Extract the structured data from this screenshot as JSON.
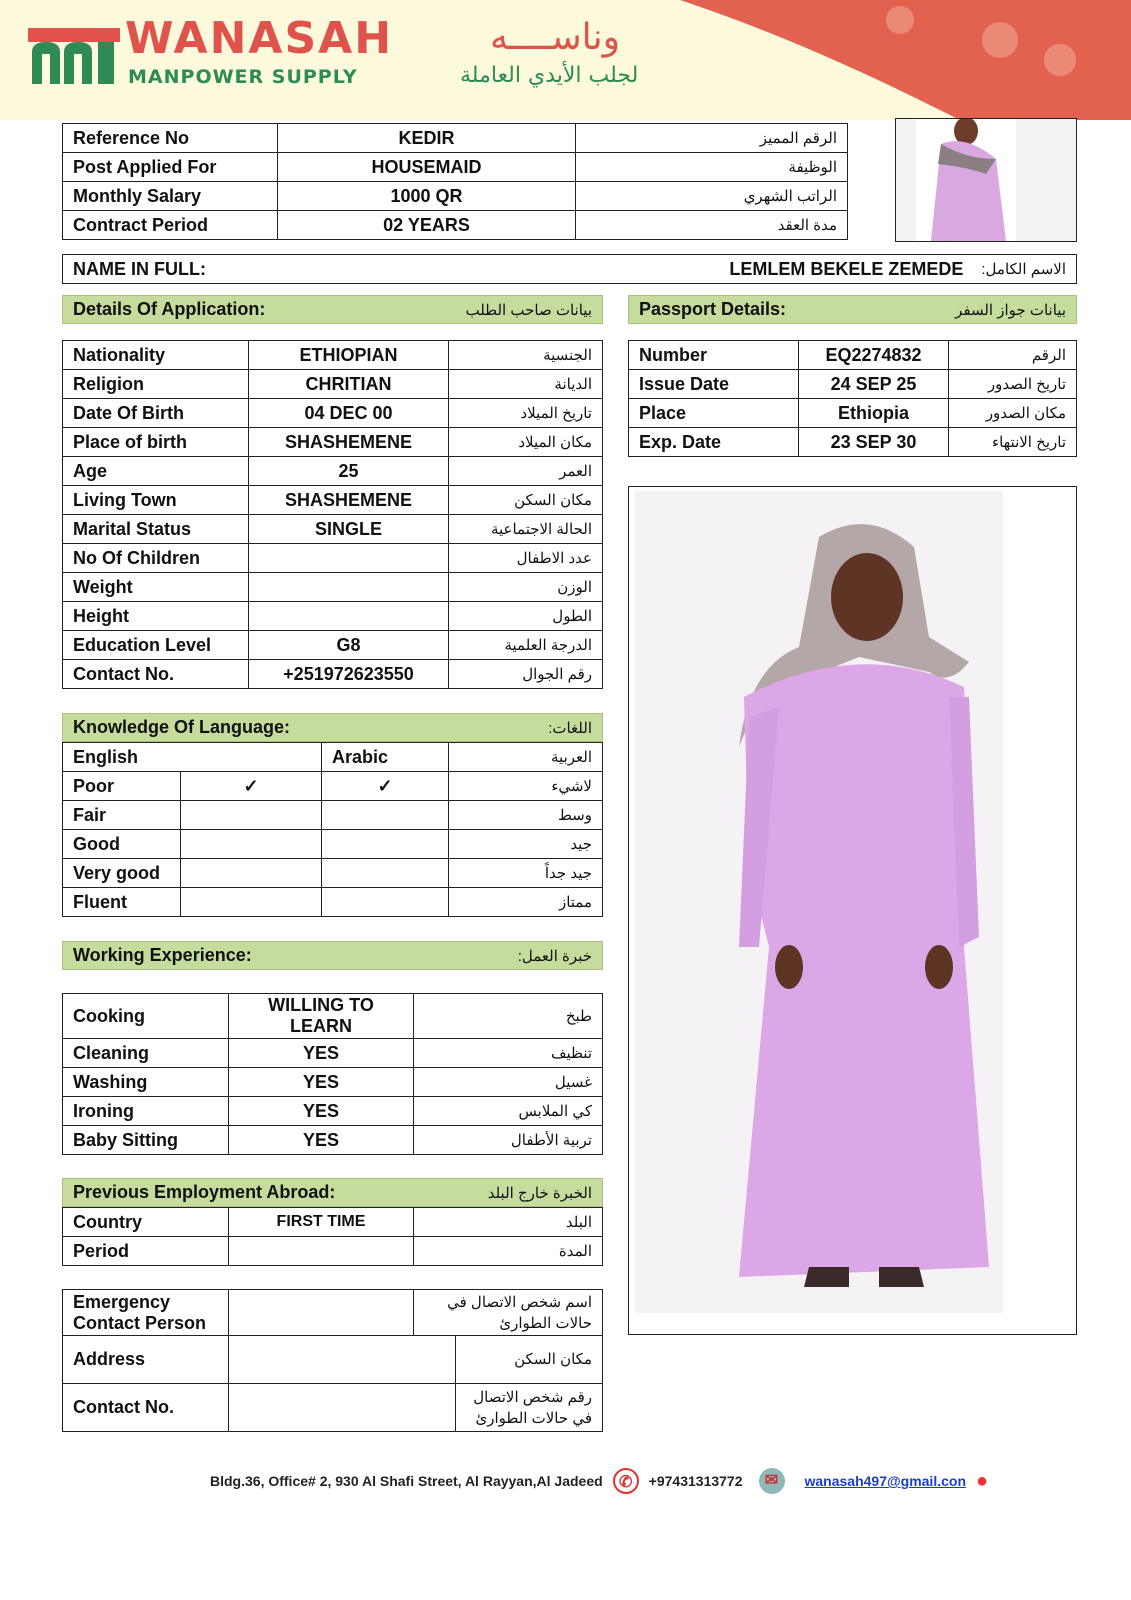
{
  "header": {
    "brand": "WANASAH",
    "brand_ar": "وناســــه",
    "tagline": "MANPOWER SUPPLY",
    "tagline_ar": "لجلب الأيدي العاملة",
    "colors": {
      "red": "#e0534a",
      "green": "#2d8b53",
      "cream": "#fcf9dd"
    }
  },
  "top_table": [
    {
      "label": "Reference No",
      "value": "KEDIR",
      "ar": "الرقم المميز"
    },
    {
      "label": "Post Applied For",
      "value": "HOUSEMAID",
      "ar": "الوظيفة"
    },
    {
      "label": "Monthly Salary",
      "value": "1000 QR",
      "ar": "الراتب الشهري"
    },
    {
      "label": "Contract Period",
      "value": "02 YEARS",
      "ar": "مدة العقد"
    }
  ],
  "name": {
    "label": "NAME IN FULL:",
    "value": "LEMLEM BEKELE ZEMEDE",
    "ar": "الاسم الكامل:"
  },
  "details": {
    "title": "Details Of Application:",
    "title_ar": "بيانات صاحب الطلب",
    "rows": [
      {
        "label": "Nationality",
        "value": "ETHIOPIAN",
        "ar": "الجنسية"
      },
      {
        "label": "Religion",
        "value": "CHRITIAN",
        "ar": "الديانة"
      },
      {
        "label": "Date Of Birth",
        "value": "04 DEC 00",
        "ar": "تاريخ الميلاد"
      },
      {
        "label": "Place of birth",
        "value": "SHASHEMENE",
        "ar": "مكان الميلاد"
      },
      {
        "label": "Age",
        "value": "25",
        "ar": "العمر"
      },
      {
        "label": "Living Town",
        "value": "SHASHEMENE",
        "ar": "مكان السكن"
      },
      {
        "label": "Marital Status",
        "value": "SINGLE",
        "ar": "الحالة الاجتماعية"
      },
      {
        "label": "No Of Children",
        "value": "",
        "ar": "عدد الاطفال"
      },
      {
        "label": "Weight",
        "value": "",
        "ar": "الوزن"
      },
      {
        "label": "Height",
        "value": "",
        "ar": "الطول"
      },
      {
        "label": "Education Level",
        "value": "G8",
        "ar": "الدرجة العلمية"
      },
      {
        "label": "Contact No.",
        "value": "+251972623550",
        "ar": "رقم الجوال"
      }
    ]
  },
  "passport": {
    "title": "Passport Details:",
    "title_ar": "بيانات جواز السفر",
    "rows": [
      {
        "label": "Number",
        "value": "EQ2274832",
        "ar": "الرقم"
      },
      {
        "label": "Issue Date",
        "value": "24 SEP 25",
        "ar": "تاريخ الصدور"
      },
      {
        "label": "Place",
        "value": "Ethiopia",
        "ar": "مكان الصدور"
      },
      {
        "label": "Exp. Date",
        "value": "23 SEP 30",
        "ar": "تاريخ الانتهاء"
      }
    ]
  },
  "language": {
    "title": "Knowledge Of Language:",
    "title_ar": "اللغات:",
    "headers": [
      "English",
      "Arabic",
      "العربية"
    ],
    "rows": [
      {
        "label": "Poor",
        "english": "✓",
        "arabic": "✓",
        "ar": "لاشيء"
      },
      {
        "label": "Fair",
        "english": "",
        "arabic": "",
        "ar": "وسط"
      },
      {
        "label": "Good",
        "english": "",
        "arabic": "",
        "ar": "جيد"
      },
      {
        "label": "Very good",
        "english": "",
        "arabic": "",
        "ar": "جيد جداً"
      },
      {
        "label": "Fluent",
        "english": "",
        "arabic": "",
        "ar": "ممتاز"
      }
    ]
  },
  "experience": {
    "title": "Working Experience:",
    "title_ar": "خبرة العمل:",
    "rows": [
      {
        "label": "Cooking",
        "value": "WILLING TO LEARN",
        "ar": "طبخ"
      },
      {
        "label": "Cleaning",
        "value": "YES",
        "ar": "تنظيف"
      },
      {
        "label": "Washing",
        "value": "YES",
        "ar": "غسيل"
      },
      {
        "label": "Ironing",
        "value": "YES",
        "ar": "كي الملابس"
      },
      {
        "label": "Baby Sitting",
        "value": "YES",
        "ar": "تربية الأطفال"
      }
    ]
  },
  "previous": {
    "title": "Previous Employment Abroad:",
    "title_ar": "الخبرة خارج البلد",
    "rows": [
      {
        "label": "Country",
        "value": "FIRST TIME",
        "ar": "البلد"
      },
      {
        "label": "Period",
        "value": "",
        "ar": "المدة"
      }
    ]
  },
  "emergency": {
    "rows": [
      {
        "label": "Emergency Contact Person",
        "value": "",
        "ar": "اسم شخص الاتصال في حالات الطوارئ"
      },
      {
        "label": "Address",
        "value": "",
        "ar": "مكان السكن"
      },
      {
        "label": "Contact No.",
        "value": "",
        "ar": "رقم شخص الاتصال في حالات الطوارئ"
      }
    ]
  },
  "footer": {
    "address": "Bldg.36, Office# 2, 930 Al Shafi Street, Al Rayyan,Al Jadeed",
    "phone": "+97431313772",
    "email": "wanasah497@gmail.con",
    "icons": [
      "phone-icon",
      "mail-icon",
      "location-pin-icon"
    ]
  }
}
